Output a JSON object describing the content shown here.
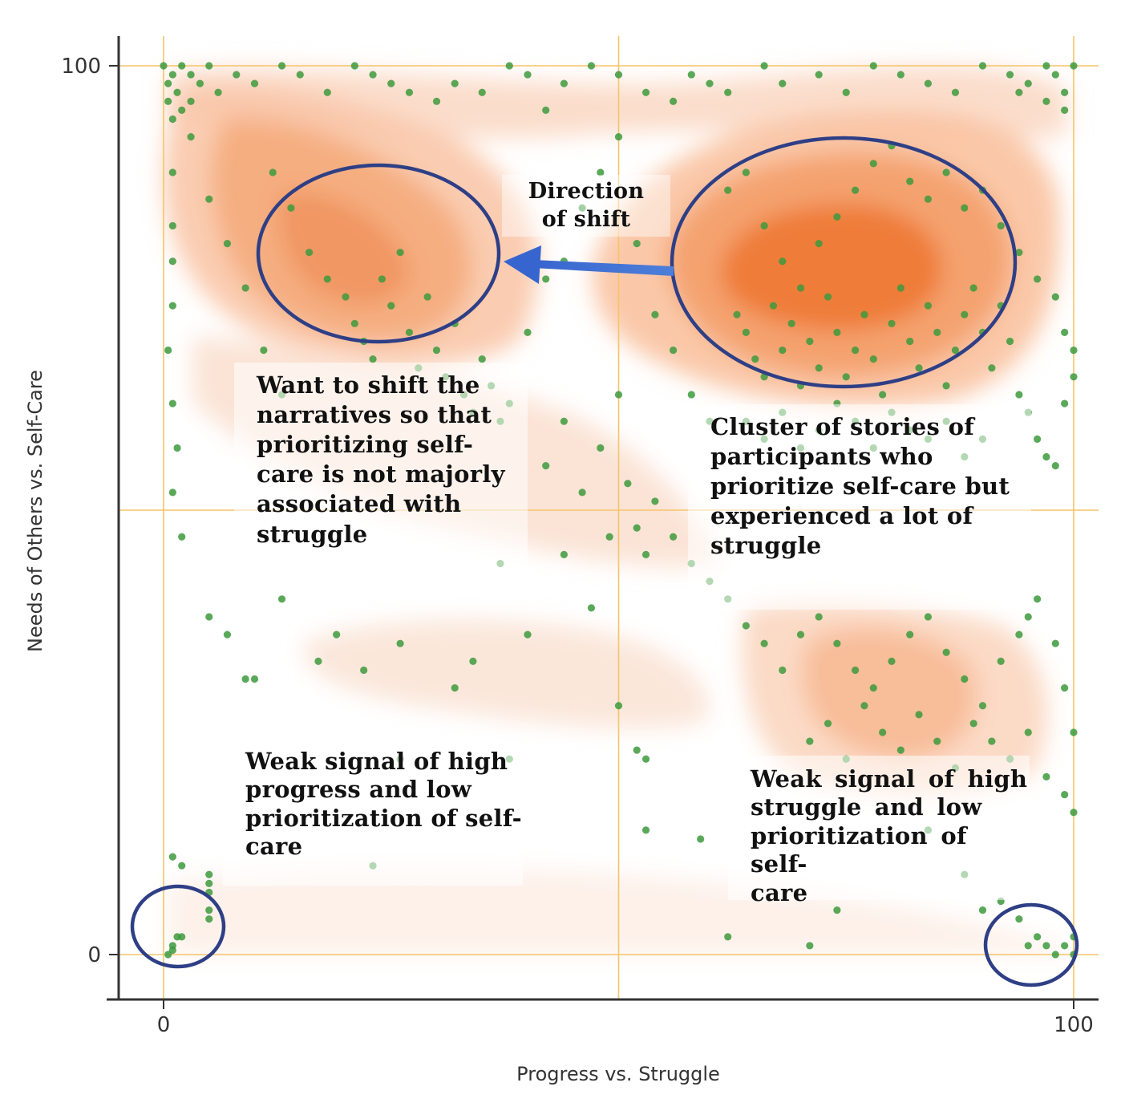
{
  "chart_data": {
    "type": "scatter",
    "title": "",
    "xlabel": "Progress vs. Struggle",
    "ylabel": "Needs of Others vs. Self-Care",
    "xlim": [
      -5,
      102
    ],
    "ylim": [
      -5,
      103
    ],
    "xticks": [
      0,
      100
    ],
    "yticks": [
      0,
      100
    ],
    "grid_x": [
      0,
      50,
      100
    ],
    "grid_y": [
      0,
      50,
      100
    ],
    "colors": {
      "points": "#3d9a3d",
      "density_light": "#fbe3d4",
      "density_mid": "#f6b58f",
      "density_dark": "#f07a35",
      "grid": "#f5c46a",
      "circle": "#2e3f86",
      "arrow": "#3b6fd0",
      "axis": "#333333"
    },
    "points": [
      [
        0,
        100
      ],
      [
        0.5,
        98
      ],
      [
        1,
        99
      ],
      [
        2,
        100
      ],
      [
        1.5,
        97
      ],
      [
        3,
        99
      ],
      [
        4,
        98
      ],
      [
        0.5,
        96
      ],
      [
        2,
        95
      ],
      [
        1,
        94
      ],
      [
        3,
        96
      ],
      [
        5,
        100
      ],
      [
        6,
        97
      ],
      [
        8,
        99
      ],
      [
        10,
        98
      ],
      [
        13,
        100
      ],
      [
        15,
        99
      ],
      [
        18,
        97
      ],
      [
        21,
        100
      ],
      [
        23,
        99
      ],
      [
        25,
        98
      ],
      [
        27,
        97
      ],
      [
        30,
        96
      ],
      [
        32,
        98
      ],
      [
        35,
        97
      ],
      [
        38,
        100
      ],
      [
        40,
        99
      ],
      [
        42,
        95
      ],
      [
        44,
        98
      ],
      [
        47,
        100
      ],
      [
        50,
        99
      ],
      [
        53,
        97
      ],
      [
        56,
        96
      ],
      [
        58,
        99
      ],
      [
        60,
        98
      ],
      [
        62,
        97
      ],
      [
        66,
        100
      ],
      [
        68,
        98
      ],
      [
        72,
        99
      ],
      [
        75,
        97
      ],
      [
        78,
        100
      ],
      [
        81,
        99
      ],
      [
        84,
        98
      ],
      [
        87,
        97
      ],
      [
        90,
        100
      ],
      [
        93,
        99
      ],
      [
        95,
        98
      ],
      [
        97,
        100
      ],
      [
        98,
        99
      ],
      [
        99,
        97
      ],
      [
        100,
        100
      ],
      [
        99,
        95
      ],
      [
        97,
        96
      ],
      [
        94,
        97
      ],
      [
        1,
        88
      ],
      [
        1,
        82
      ],
      [
        1,
        78
      ],
      [
        1,
        73
      ],
      [
        0.5,
        68
      ],
      [
        1,
        62
      ],
      [
        1.5,
        57
      ],
      [
        1,
        52
      ],
      [
        3,
        92
      ],
      [
        5,
        85
      ],
      [
        7,
        80
      ],
      [
        9,
        75
      ],
      [
        11,
        68
      ],
      [
        13,
        63
      ],
      [
        12,
        88
      ],
      [
        14,
        84
      ],
      [
        16,
        79
      ],
      [
        18,
        76
      ],
      [
        20,
        74
      ],
      [
        21,
        71
      ],
      [
        22,
        69
      ],
      [
        23,
        67
      ],
      [
        24,
        76
      ],
      [
        25,
        73
      ],
      [
        26,
        79
      ],
      [
        27,
        70
      ],
      [
        28,
        66
      ],
      [
        29,
        74
      ],
      [
        30,
        68
      ],
      [
        31,
        65
      ],
      [
        32,
        71
      ],
      [
        33,
        63
      ],
      [
        34,
        61
      ],
      [
        35,
        67
      ],
      [
        36,
        64
      ],
      [
        37,
        60
      ],
      [
        38,
        62
      ],
      [
        40,
        70
      ],
      [
        42,
        76
      ],
      [
        44,
        78
      ],
      [
        46,
        84
      ],
      [
        48,
        88
      ],
      [
        50,
        92
      ],
      [
        52,
        80
      ],
      [
        54,
        72
      ],
      [
        56,
        68
      ],
      [
        58,
        63
      ],
      [
        60,
        60
      ],
      [
        62,
        86
      ],
      [
        64,
        88
      ],
      [
        66,
        82
      ],
      [
        68,
        78
      ],
      [
        70,
        75
      ],
      [
        72,
        80
      ],
      [
        74,
        83
      ],
      [
        76,
        86
      ],
      [
        78,
        89
      ],
      [
        80,
        91
      ],
      [
        82,
        87
      ],
      [
        84,
        85
      ],
      [
        86,
        88
      ],
      [
        88,
        84
      ],
      [
        90,
        86
      ],
      [
        92,
        82
      ],
      [
        94,
        79
      ],
      [
        96,
        76
      ],
      [
        98,
        74
      ],
      [
        99,
        70
      ],
      [
        100,
        68
      ],
      [
        63,
        72
      ],
      [
        64,
        70
      ],
      [
        65,
        67
      ],
      [
        66,
        65
      ],
      [
        67,
        73
      ],
      [
        68,
        68
      ],
      [
        69,
        71
      ],
      [
        70,
        64
      ],
      [
        71,
        69
      ],
      [
        72,
        66
      ],
      [
        73,
        74
      ],
      [
        74,
        70
      ],
      [
        75,
        65
      ],
      [
        76,
        68
      ],
      [
        77,
        72
      ],
      [
        78,
        67
      ],
      [
        79,
        63
      ],
      [
        80,
        71
      ],
      [
        81,
        75
      ],
      [
        82,
        69
      ],
      [
        83,
        66
      ],
      [
        84,
        73
      ],
      [
        85,
        70
      ],
      [
        86,
        64
      ],
      [
        87,
        68
      ],
      [
        88,
        72
      ],
      [
        89,
        75
      ],
      [
        90,
        70
      ],
      [
        91,
        66
      ],
      [
        92,
        73
      ],
      [
        93,
        69
      ],
      [
        94,
        63
      ],
      [
        95,
        61
      ],
      [
        96,
        58
      ],
      [
        97,
        56
      ],
      [
        98,
        55
      ],
      [
        99,
        62
      ],
      [
        100,
        65
      ],
      [
        64,
        60
      ],
      [
        66,
        58
      ],
      [
        68,
        61
      ],
      [
        70,
        57
      ],
      [
        72,
        59
      ],
      [
        74,
        62
      ],
      [
        76,
        60
      ],
      [
        78,
        57
      ],
      [
        80,
        61
      ],
      [
        82,
        59
      ],
      [
        84,
        58
      ],
      [
        86,
        60
      ],
      [
        88,
        56
      ],
      [
        90,
        58
      ],
      [
        42,
        55
      ],
      [
        44,
        60
      ],
      [
        46,
        52
      ],
      [
        48,
        57
      ],
      [
        50,
        63
      ],
      [
        51,
        53
      ],
      [
        52,
        48
      ],
      [
        53,
        45
      ],
      [
        54,
        51
      ],
      [
        56,
        47
      ],
      [
        58,
        44
      ],
      [
        60,
        42
      ],
      [
        2,
        47
      ],
      [
        5,
        38
      ],
      [
        7,
        36
      ],
      [
        9,
        31
      ],
      [
        10,
        31
      ],
      [
        13,
        40
      ],
      [
        17,
        33
      ],
      [
        19,
        36
      ],
      [
        22,
        32
      ],
      [
        26,
        35
      ],
      [
        32,
        30
      ],
      [
        34,
        33
      ],
      [
        37,
        44
      ],
      [
        40,
        36
      ],
      [
        44,
        45
      ],
      [
        47,
        39
      ],
      [
        49,
        47
      ],
      [
        50,
        28
      ],
      [
        52,
        23
      ],
      [
        53,
        22
      ],
      [
        62,
        40
      ],
      [
        64,
        37
      ],
      [
        66,
        35
      ],
      [
        68,
        32
      ],
      [
        70,
        36
      ],
      [
        72,
        38
      ],
      [
        74,
        35
      ],
      [
        76,
        32
      ],
      [
        78,
        30
      ],
      [
        80,
        33
      ],
      [
        82,
        36
      ],
      [
        84,
        38
      ],
      [
        86,
        34
      ],
      [
        88,
        31
      ],
      [
        90,
        28
      ],
      [
        92,
        33
      ],
      [
        94,
        36
      ],
      [
        95,
        38
      ],
      [
        96,
        40
      ],
      [
        98,
        35
      ],
      [
        99,
        30
      ],
      [
        100,
        25
      ],
      [
        71,
        24
      ],
      [
        73,
        26
      ],
      [
        75,
        22
      ],
      [
        77,
        28
      ],
      [
        79,
        25
      ],
      [
        81,
        23
      ],
      [
        83,
        27
      ],
      [
        85,
        24
      ],
      [
        87,
        21
      ],
      [
        89,
        26
      ],
      [
        91,
        24
      ],
      [
        93,
        22
      ],
      [
        95,
        25
      ],
      [
        97,
        20
      ],
      [
        99,
        18
      ],
      [
        100,
        16
      ],
      [
        1,
        11
      ],
      [
        2,
        10
      ],
      [
        5,
        9
      ],
      [
        5,
        8
      ],
      [
        5,
        7
      ],
      [
        5,
        5
      ],
      [
        5,
        4
      ],
      [
        1,
        1
      ],
      [
        1.5,
        2
      ],
      [
        0.5,
        0
      ],
      [
        1,
        0.5
      ],
      [
        2,
        2
      ],
      [
        23,
        10
      ],
      [
        26,
        22
      ],
      [
        38,
        22
      ],
      [
        53,
        14
      ],
      [
        59,
        13
      ],
      [
        74,
        5
      ],
      [
        84,
        14
      ],
      [
        88,
        9
      ],
      [
        90,
        5
      ],
      [
        92,
        6
      ],
      [
        94,
        4
      ],
      [
        95,
        1
      ],
      [
        96,
        2
      ],
      [
        97,
        1
      ],
      [
        98,
        0
      ],
      [
        99,
        1
      ],
      [
        100,
        0
      ],
      [
        100,
        2
      ],
      [
        71,
        1
      ],
      [
        62,
        2
      ]
    ]
  },
  "annotations": {
    "direction": "Direction\nof shift",
    "shift": "Want to shift the\nnarratives so that\nprioritizing self-\ncare is not majorly\nassociated with\nstruggle",
    "cluster": "Cluster  of stories of\nparticipants who\nprioritize self-care but\nexperienced a lot of\nstruggle",
    "weak_left": "Weak signal of high\nprogress and low\nprioritization  of self-\ncare",
    "weak_right": "Weak  signal  of  high\nstruggle    and    low\nprioritization   of  self-\ncare"
  }
}
